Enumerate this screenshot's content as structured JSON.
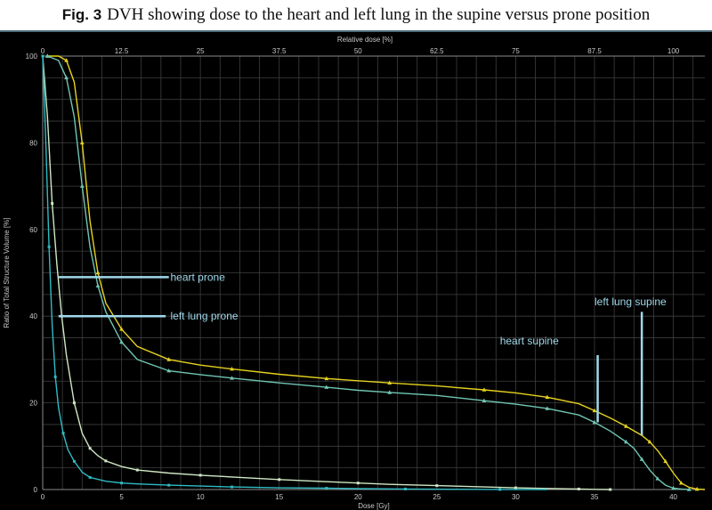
{
  "figure": {
    "label": "Fig. 3",
    "caption": "DVH showing dose to the heart and left lung in the supine versus prone position"
  },
  "chart_data": {
    "type": "line",
    "title": "",
    "xlabel": "Dose [Gy]",
    "x2label": "Relative dose [%]",
    "ylabel": "Ratio of Total Structure Volume [%]",
    "xlim": [
      0,
      42
    ],
    "ylim": [
      0,
      100
    ],
    "x_ticks": [
      0,
      5,
      10,
      15,
      20,
      25,
      30,
      35,
      40
    ],
    "x2_ticks": [
      "0",
      "12.5",
      "25",
      "37.5",
      "50",
      "62.5",
      "75",
      "87.5",
      "100"
    ],
    "y_ticks": [
      0,
      20,
      40,
      60,
      80,
      100
    ],
    "grid": true,
    "series": [
      {
        "name": "left lung supine",
        "color": "#e6d21e",
        "marker": "triangle",
        "x": [
          0.3,
          1.0,
          1.5,
          2.0,
          2.5,
          3.0,
          3.5,
          4.0,
          5.0,
          6.0,
          8.0,
          10.0,
          12.0,
          15.0,
          18.0,
          20.0,
          22.0,
          25.0,
          28.0,
          30.0,
          32.0,
          34.0,
          35.0,
          36.0,
          37.0,
          38.0,
          38.5,
          39.0,
          39.5,
          40.0,
          40.5,
          41.0,
          41.5,
          42.0
        ],
        "y": [
          100,
          100,
          99,
          94,
          80,
          62,
          50,
          43,
          37,
          33,
          30,
          28.7,
          27.8,
          26.6,
          25.6,
          25.1,
          24.6,
          23.9,
          23.0,
          22.3,
          21.3,
          19.8,
          18.2,
          16.5,
          14.6,
          12.5,
          11.0,
          9.0,
          6.5,
          3.8,
          1.5,
          0.5,
          0.1,
          0
        ]
      },
      {
        "name": "heart supine",
        "color": "#6fc6b4",
        "marker": "triangle",
        "x": [
          0.3,
          1.0,
          1.5,
          2.0,
          2.5,
          3.0,
          3.5,
          4.0,
          5.0,
          6.0,
          8.0,
          10.0,
          12.0,
          15.0,
          18.0,
          20.0,
          22.0,
          25.0,
          28.0,
          30.0,
          32.0,
          34.0,
          35.0,
          36.0,
          37.0,
          37.5,
          38.0,
          38.5,
          39.0,
          39.5,
          40.0,
          40.5,
          41.0
        ],
        "y": [
          100,
          99,
          95,
          86,
          70,
          56,
          47,
          41,
          34,
          30,
          27.4,
          26.5,
          25.7,
          24.6,
          23.6,
          22.9,
          22.4,
          21.7,
          20.5,
          19.7,
          18.7,
          17.2,
          15.5,
          13.5,
          11.0,
          9.5,
          7.0,
          4.5,
          2.5,
          1.0,
          0.3,
          0.1,
          0
        ]
      },
      {
        "name": "heart prone",
        "color": "#cfe8c4",
        "marker": "square",
        "x": [
          0.0,
          0.3,
          0.6,
          0.9,
          1.2,
          1.5,
          2.0,
          2.5,
          3.0,
          3.5,
          4.0,
          5.0,
          6.0,
          8.0,
          10.0,
          12.0,
          15.0,
          18.0,
          20.0,
          22.0,
          25.0,
          28.0,
          30.0,
          32.0,
          34.0,
          35.0,
          36.0
        ],
        "y": [
          100,
          86,
          66,
          52,
          40,
          31,
          20,
          13,
          9.5,
          7.8,
          6.6,
          5.3,
          4.5,
          3.8,
          3.3,
          2.9,
          2.3,
          1.8,
          1.5,
          1.2,
          0.9,
          0.6,
          0.4,
          0.25,
          0.12,
          0.05,
          0
        ]
      },
      {
        "name": "left lung prone",
        "color": "#2fbcc4",
        "marker": "square",
        "x": [
          0.0,
          0.2,
          0.4,
          0.6,
          0.8,
          1.0,
          1.3,
          1.6,
          2.0,
          2.5,
          3.0,
          4.0,
          5.0,
          6.0,
          8.0,
          10.0,
          12.0,
          15.0,
          18.0,
          20.0,
          23.0,
          26.0,
          29.0,
          32.0
        ],
        "y": [
          100,
          80,
          56,
          38,
          26,
          19,
          13,
          9.2,
          6.5,
          4.0,
          2.8,
          1.9,
          1.5,
          1.3,
          1.0,
          0.8,
          0.6,
          0.4,
          0.3,
          0.2,
          0.12,
          0.06,
          0.02,
          0
        ]
      }
    ],
    "annotations": [
      {
        "text": "heart prone"
      },
      {
        "text": "left lung prone"
      },
      {
        "text": "left lung supine"
      },
      {
        "text": "heart supine"
      }
    ]
  }
}
